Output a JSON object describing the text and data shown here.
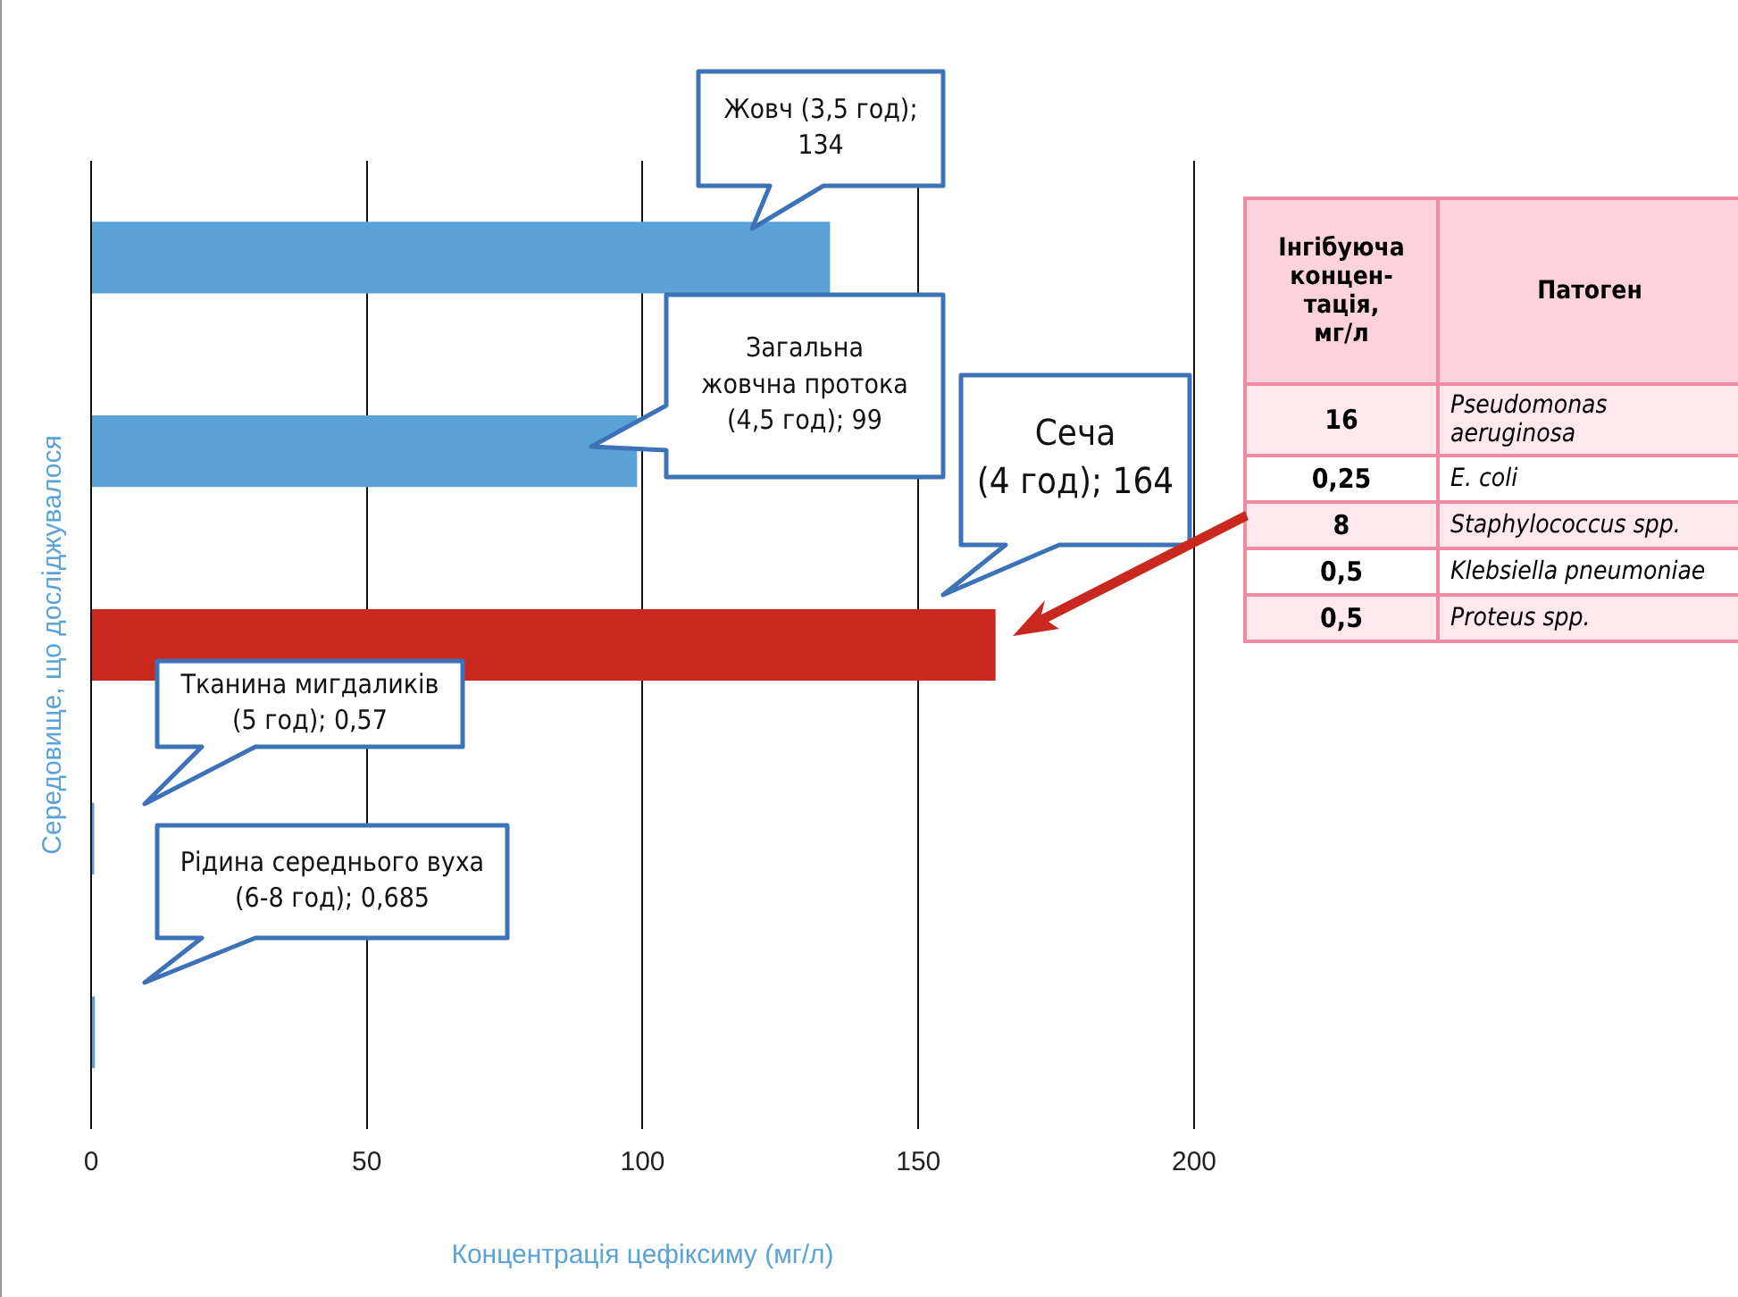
{
  "chart_data": [
    {
      "type": "bar",
      "orientation": "horizontal",
      "categories": [
        null,
        null,
        null,
        null,
        null
      ],
      "values": [
        134,
        99,
        164,
        0.57,
        0.685
      ],
      "colors": [
        "#5ba3d6",
        "#5ba3d6",
        "#c8281e",
        "#5ba3d6",
        "#5ba3d6"
      ],
      "annotations": [
        "Жовч (3,5 год);\n134",
        "Загальна\nжовчна протока\n(4,5 год); 99",
        "Сеча\n(4 год); 164",
        "Тканина мигдаликів\n(5 год); 0,57",
        "Рідина середнього вуха\n(6-8 год); 0,685"
      ],
      "xlabel": "Концентрація цефіксиму (мг/л)",
      "ylabel": "Середовище, що досліджувалося",
      "xlim": [
        0,
        200
      ],
      "xticks": [
        0,
        50,
        100,
        150,
        200
      ],
      "grid": "x",
      "legend": false
    },
    {
      "type": "other",
      "ylabel": "Інгібуюча\nконцен-\nтація,\nмг/л",
      "xlabel": "Патоген",
      "categories": [
        "Pseudomonas aeruginosa",
        "E. coli",
        "Staphylococcus spp.",
        "Klebsiella pneumoniae",
        "Proteus spp."
      ],
      "value_labels": [
        "16",
        "0,25",
        "8",
        "0,5",
        "0,5"
      ]
    }
  ]
}
